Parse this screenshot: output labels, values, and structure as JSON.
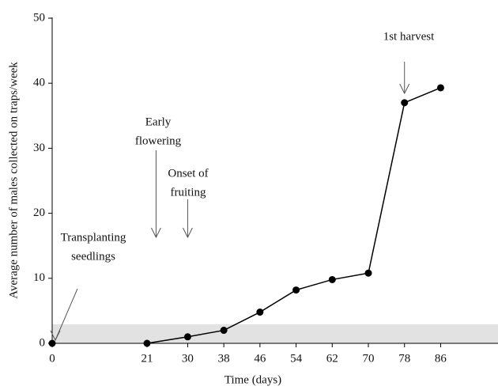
{
  "chart_data": {
    "type": "line",
    "y_label": "Average number of males collected on traps/week",
    "x_label": "Time (days)",
    "xlim": [
      0,
      98
    ],
    "xticks": [
      0,
      21,
      30,
      38,
      46,
      54,
      62,
      70,
      78,
      86
    ],
    "ylim": [
      0,
      50
    ],
    "yticks": [
      0,
      10,
      20,
      30,
      40,
      50
    ],
    "series": [
      {
        "color": "#000000",
        "x": [
          0
        ],
        "values": [
          0
        ]
      },
      {
        "color": "#000000",
        "x": [
          21,
          30,
          38,
          46,
          54,
          62,
          70,
          78,
          86
        ],
        "values": [
          0,
          1,
          2,
          4.8,
          8.2,
          9.8,
          10.8,
          37,
          39.3
        ]
      }
    ],
    "annotations": [
      {
        "lines": [
          "Transplanting",
          "seedlings"
        ],
        "x": 0
      },
      {
        "lines": [
          "Early",
          "flowering"
        ],
        "x": 23
      },
      {
        "lines": [
          "Onset of",
          "fruiting"
        ],
        "x": 30
      },
      {
        "lines": [
          "1st harvest"
        ],
        "x": 78
      }
    ]
  }
}
